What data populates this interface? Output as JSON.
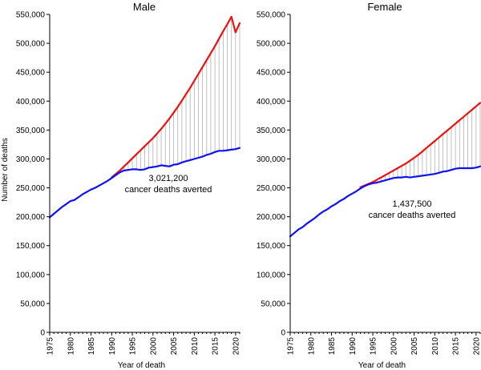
{
  "chart_data": [
    {
      "type": "line",
      "title": "Male",
      "xlabel": "Year of death",
      "ylabel": "Number of deaths",
      "xlim": [
        1975,
        2021
      ],
      "ylim": [
        0,
        550000
      ],
      "x_ticks": [
        "1975",
        "1980",
        "1985",
        "1990",
        "1995",
        "2000",
        "2005",
        "2010",
        "2015",
        "2020"
      ],
      "y_ticks": [
        "0",
        "50,000",
        "100,000",
        "150,000",
        "200,000",
        "250,000",
        "300,000",
        "350,000",
        "400,000",
        "450,000",
        "500,000",
        "550,000"
      ],
      "annotation": [
        "3,021,200",
        "cancer deaths averted"
      ],
      "series": [
        {
          "color": "#ee1111",
          "x": [
            1990,
            1991,
            1992,
            1993,
            1994,
            1995,
            1996,
            1997,
            1998,
            1999,
            2000,
            2001,
            2002,
            2003,
            2004,
            2005,
            2006,
            2007,
            2008,
            2009,
            2010,
            2011,
            2012,
            2013,
            2014,
            2015,
            2016,
            2017,
            2018,
            2019,
            2020,
            2021
          ],
          "values": [
            268000,
            274000,
            280000,
            287000,
            294000,
            301000,
            308000,
            315000,
            322000,
            329000,
            336000,
            344000,
            352000,
            361000,
            370000,
            380000,
            390000,
            401000,
            412000,
            423000,
            435000,
            447000,
            459000,
            471000,
            483000,
            495000,
            508000,
            521000,
            533000,
            546000,
            519000,
            535000
          ]
        },
        {
          "color": "#1111ee",
          "x": [
            1975,
            1976,
            1977,
            1978,
            1979,
            1980,
            1981,
            1982,
            1983,
            1984,
            1985,
            1986,
            1987,
            1988,
            1989,
            1990,
            1991,
            1992,
            1993,
            1994,
            1995,
            1996,
            1997,
            1998,
            1999,
            2000,
            2001,
            2002,
            2003,
            2004,
            2005,
            2006,
            2007,
            2008,
            2009,
            2010,
            2011,
            2012,
            2013,
            2014,
            2015,
            2016,
            2017,
            2018,
            2019,
            2020,
            2021
          ],
          "values": [
            199000,
            205000,
            211000,
            217000,
            222000,
            227000,
            229000,
            234000,
            239000,
            243000,
            247000,
            250000,
            254000,
            258000,
            262000,
            267000,
            272000,
            277000,
            280000,
            281000,
            282000,
            282000,
            281000,
            282000,
            285000,
            286000,
            287000,
            289000,
            288000,
            287000,
            290000,
            291000,
            294000,
            296000,
            298000,
            300000,
            302000,
            304000,
            307000,
            309000,
            312000,
            314000,
            314000,
            315000,
            316000,
            317000,
            319000
          ]
        }
      ]
    },
    {
      "type": "line",
      "title": "Female",
      "xlabel": "Year of death",
      "ylabel": "",
      "xlim": [
        1975,
        2021
      ],
      "ylim": [
        0,
        550000
      ],
      "x_ticks": [
        "1975",
        "1980",
        "1985",
        "1990",
        "1995",
        "2000",
        "2005",
        "2010",
        "2015",
        "2020"
      ],
      "y_ticks": [
        "0",
        "50,000",
        "100,000",
        "150,000",
        "200,000",
        "250,000",
        "300,000",
        "350,000",
        "400,000",
        "450,000",
        "500,000",
        "550,000"
      ],
      "annotation": [
        "1,437,500",
        "cancer deaths averted"
      ],
      "series": [
        {
          "color": "#ee1111",
          "x": [
            1992,
            1993,
            1994,
            1995,
            1996,
            1997,
            1998,
            1999,
            2000,
            2001,
            2002,
            2003,
            2004,
            2005,
            2006,
            2007,
            2008,
            2009,
            2010,
            2011,
            2012,
            2013,
            2014,
            2015,
            2016,
            2017,
            2018,
            2019,
            2020,
            2021
          ],
          "values": [
            251000,
            254000,
            257000,
            260000,
            264000,
            268000,
            272000,
            276000,
            280000,
            284000,
            288000,
            292000,
            297000,
            302000,
            307000,
            313000,
            319000,
            325000,
            331000,
            337000,
            343000,
            349000,
            355000,
            361000,
            367000,
            373000,
            379000,
            385000,
            391000,
            397000
          ]
        },
        {
          "color": "#1111ee",
          "x": [
            1975,
            1976,
            1977,
            1978,
            1979,
            1980,
            1981,
            1982,
            1983,
            1984,
            1985,
            1986,
            1987,
            1988,
            1989,
            1990,
            1991,
            1992,
            1993,
            1994,
            1995,
            1996,
            1997,
            1998,
            1999,
            2000,
            2001,
            2002,
            2003,
            2004,
            2005,
            2006,
            2007,
            2008,
            2009,
            2010,
            2011,
            2012,
            2013,
            2014,
            2015,
            2016,
            2017,
            2018,
            2019,
            2020,
            2021
          ],
          "values": [
            166000,
            172000,
            178000,
            182000,
            188000,
            193000,
            198000,
            204000,
            209000,
            213000,
            218000,
            222000,
            227000,
            231000,
            236000,
            240000,
            244000,
            249000,
            253000,
            256000,
            258000,
            259000,
            261000,
            263000,
            265000,
            267000,
            268000,
            268000,
            269000,
            268000,
            269000,
            270000,
            271000,
            272000,
            273000,
            274000,
            276000,
            278000,
            279000,
            281000,
            283000,
            284000,
            284000,
            284000,
            284000,
            285000,
            287000
          ]
        }
      ]
    }
  ]
}
